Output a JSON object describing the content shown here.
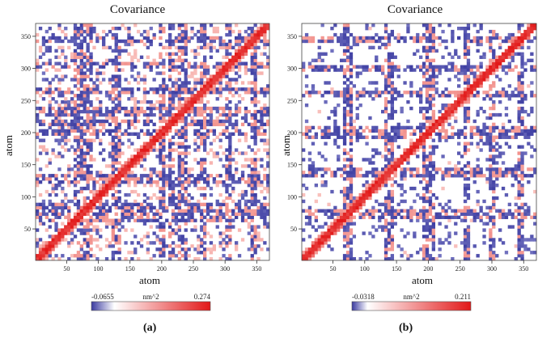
{
  "chart_data": [
    {
      "type": "heatmap",
      "panel_label": "(a)",
      "title": "Covariance",
      "xlabel": "atom",
      "ylabel": "atom",
      "x_ticks": [
        50,
        100,
        150,
        200,
        250,
        300,
        350
      ],
      "y_ticks": [
        50,
        100,
        150,
        200,
        250,
        300,
        350
      ],
      "xlim": [
        1,
        370
      ],
      "ylim": [
        1,
        370
      ],
      "colorbar": {
        "min_label": "-0.0655",
        "unit": "nm^2",
        "max_label": "0.274",
        "min": -0.0655,
        "max": 0.274
      },
      "hot_residues": [
        70,
        82,
        128,
        200,
        215,
        232,
        265,
        305,
        345
      ],
      "colors": {
        "negative": "#3a3aa0",
        "zero": "#ffffff",
        "positive": "#e21818"
      }
    },
    {
      "type": "heatmap",
      "panel_label": "(b)",
      "title": "Covariance",
      "xlabel": "atom",
      "ylabel": "atom",
      "x_ticks": [
        50,
        100,
        150,
        200,
        250,
        300,
        350
      ],
      "y_ticks": [
        50,
        100,
        150,
        200,
        250,
        300,
        350
      ],
      "xlim": [
        1,
        370
      ],
      "ylim": [
        1,
        370
      ],
      "colorbar": {
        "min_label": "-0.0318",
        "unit": "nm^2",
        "max_label": "0.211",
        "min": -0.0318,
        "max": 0.211
      },
      "hot_residues": [
        75,
        140,
        195,
        205,
        260,
        300,
        345
      ],
      "colors": {
        "negative": "#3a3aa0",
        "zero": "#ffffff",
        "positive": "#e21818"
      }
    }
  ]
}
